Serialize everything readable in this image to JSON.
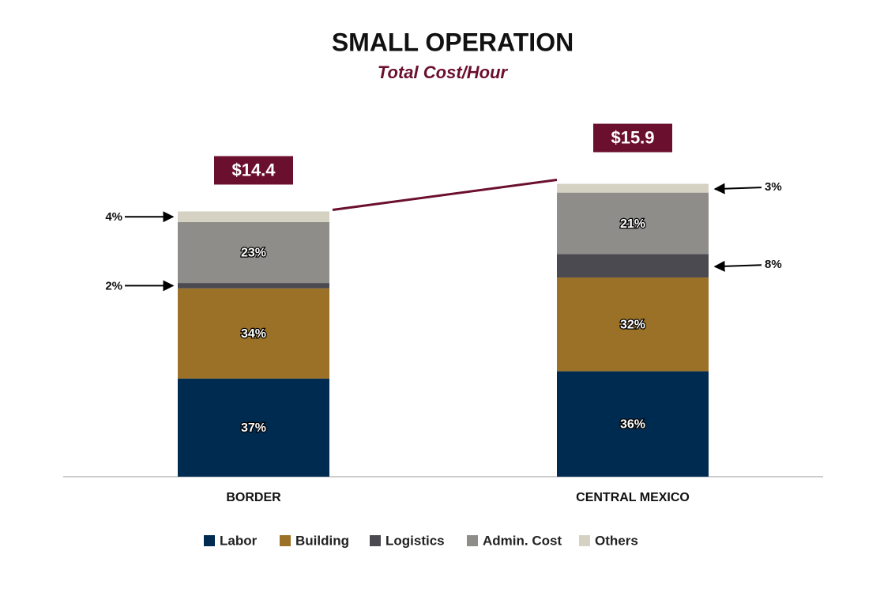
{
  "chart_data": {
    "type": "stacked_bar",
    "title": "SMALL OPERATION",
    "subtitle": "Total Cost/Hour",
    "categories": [
      "BORDER",
      "CENTRAL MEXICO"
    ],
    "totals": {
      "values": [
        14.4,
        15.9
      ],
      "value_labels": [
        "$14.4",
        "$15.9"
      ],
      "color": "#6b0f2e"
    },
    "series": [
      {
        "name": "Labor",
        "color": "#002b50",
        "values": [
          37,
          36
        ],
        "value_labels": [
          "37%",
          "36%"
        ]
      },
      {
        "name": "Building",
        "color": "#9a7126",
        "values": [
          34,
          32
        ],
        "value_labels": [
          "34%",
          "32%"
        ]
      },
      {
        "name": "Logistics",
        "color": "#4a4a50",
        "values": [
          2,
          8
        ],
        "value_labels": [
          "2%",
          "8%"
        ]
      },
      {
        "name": "Admin. Cost",
        "color": "#8e8d89",
        "values": [
          23,
          21
        ],
        "value_labels": [
          "23%",
          "21%"
        ]
      },
      {
        "name": "Others",
        "color": "#d5d1c3",
        "values": [
          4,
          3
        ],
        "value_labels": [
          "4%",
          "3%"
        ]
      }
    ]
  }
}
